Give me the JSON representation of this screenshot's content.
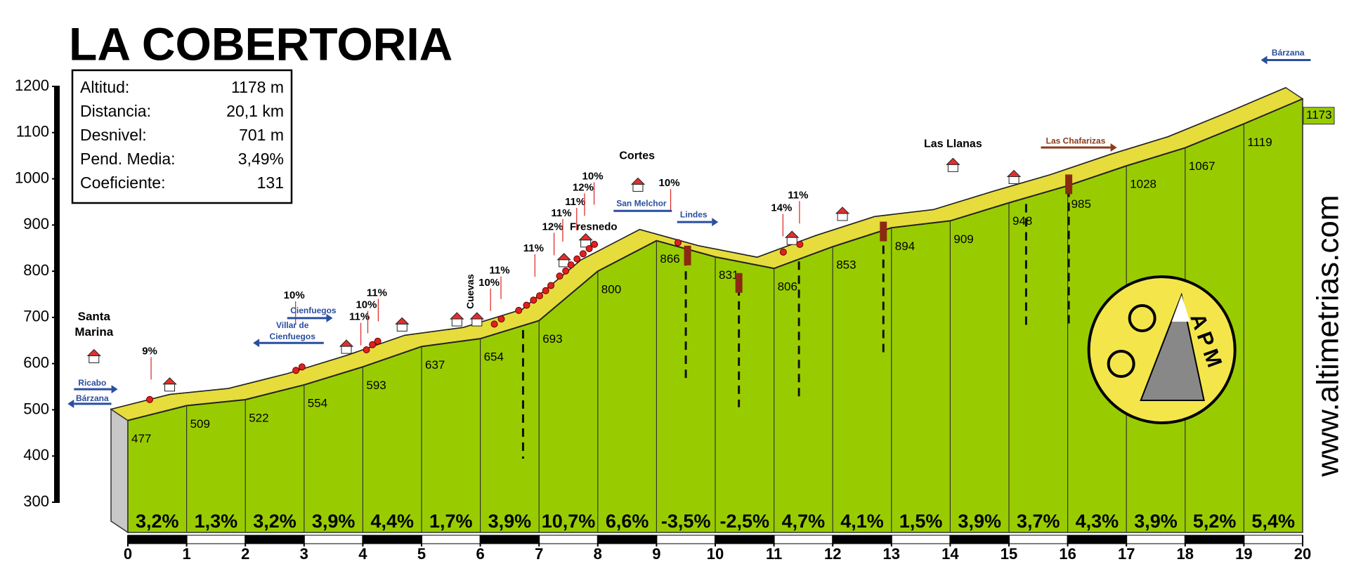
{
  "chart_data": {
    "type": "profile",
    "title": "LA COBERTORIA",
    "stats": [
      {
        "label": "Altitud:",
        "value": "1178 m"
      },
      {
        "label": "Distancia:",
        "value": "20,1 km"
      },
      {
        "label": "Desnivel:",
        "value": "701 m"
      },
      {
        "label": "Pend. Media:",
        "value": "3,49%"
      },
      {
        "label": "Coeficiente:",
        "value": "131"
      }
    ],
    "x": [
      0,
      1,
      2,
      3,
      4,
      5,
      6,
      7,
      8,
      9,
      10,
      11,
      12,
      13,
      14,
      15,
      16,
      17,
      18,
      19,
      20
    ],
    "values": [
      477,
      509,
      522,
      554,
      593,
      637,
      654,
      693,
      800,
      866,
      831,
      806,
      853,
      894,
      909,
      948,
      985,
      1028,
      1067,
      1119,
      1173
    ],
    "gradients": [
      3.2,
      1.3,
      3.2,
      3.9,
      4.4,
      1.7,
      3.9,
      10.7,
      6.6,
      -3.5,
      -2.5,
      4.7,
      4.1,
      1.5,
      3.9,
      3.7,
      4.3,
      3.9,
      5.2,
      5.4
    ],
    "gradient_labels": [
      "3,2%",
      "1,3%",
      "3,2%",
      "3,9%",
      "4,4%",
      "1,7%",
      "3,9%",
      "10,7%",
      "6,6%",
      "-3,5%",
      "-2,5%",
      "4,7%",
      "4,1%",
      "1,5%",
      "3,9%",
      "3,7%",
      "4,3%",
      "3,9%",
      "5,2%",
      "5,4%"
    ],
    "color": "#99cc00",
    "xlim": [
      0,
      20
    ],
    "xticks": [
      0,
      1,
      2,
      3,
      4,
      5,
      6,
      7,
      8,
      9,
      10,
      11,
      12,
      13,
      14,
      15,
      16,
      17,
      18,
      19,
      20
    ],
    "ylim": [
      300,
      1200
    ],
    "yticks": [
      300,
      400,
      500,
      600,
      700,
      800,
      900,
      1000,
      1100,
      1200
    ],
    "annotations": [
      "9%",
      "10%",
      "11%",
      "10%",
      "11%",
      "10%",
      "11%",
      "11%",
      "12%",
      "11%",
      "11%",
      "12%",
      "10%",
      "10%",
      "14%",
      "11%"
    ],
    "places": [
      "Santa",
      "Marina",
      "Ricabo",
      "Bárzana",
      "Villar de",
      "Cienfuegos",
      "Cienfuegos",
      "Cuevas",
      "Fresnedo",
      "Cortes",
      "San Melchor",
      "Lindes",
      "Las Llanas",
      "Las Chafarizas",
      "Bárzana"
    ],
    "logo": "APM",
    "website": "www.altimetrias.com"
  }
}
